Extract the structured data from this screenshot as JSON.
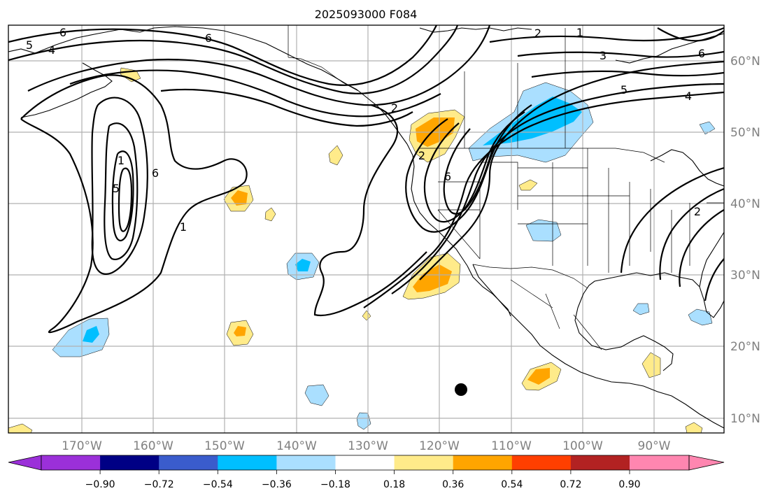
{
  "title": "2025093000 F084",
  "lat_labels": [
    "60°N",
    "50°N",
    "40°N",
    "30°N",
    "20°N",
    "10°N"
  ],
  "lon_labels": [
    "170°W",
    "160°W",
    "150°W",
    "140°W",
    "130°W",
    "120°W",
    "110°W",
    "100°W",
    "90°W"
  ],
  "contour_labels": [
    "6",
    "5",
    "4",
    "6",
    "2",
    "1",
    "3",
    "5",
    "4",
    "6",
    "2",
    "1",
    "5",
    "6",
    "1",
    "2",
    "6",
    "2"
  ],
  "colorbar": {
    "colors": [
      "#9b30d9",
      "#000085",
      "#3a5ccc",
      "#00bfff",
      "#aadfff",
      "#ffffff",
      "#ffeb8a",
      "#ffa500",
      "#ff3f00",
      "#b22222",
      "#ff86b0"
    ],
    "tick_labels": [
      "−0.90",
      "−0.72",
      "−0.54",
      "−0.36",
      "−0.18",
      "0.18",
      "0.36",
      "0.54",
      "0.72",
      "0.90"
    ]
  },
  "colors": {
    "light_blue": "#aadfff",
    "cyan": "#00bfff",
    "yellow": "#ffeb8a",
    "orange": "#ffa500",
    "grid": "#b0b0b0",
    "label_gray": "#808080"
  },
  "marker": "black-dot"
}
